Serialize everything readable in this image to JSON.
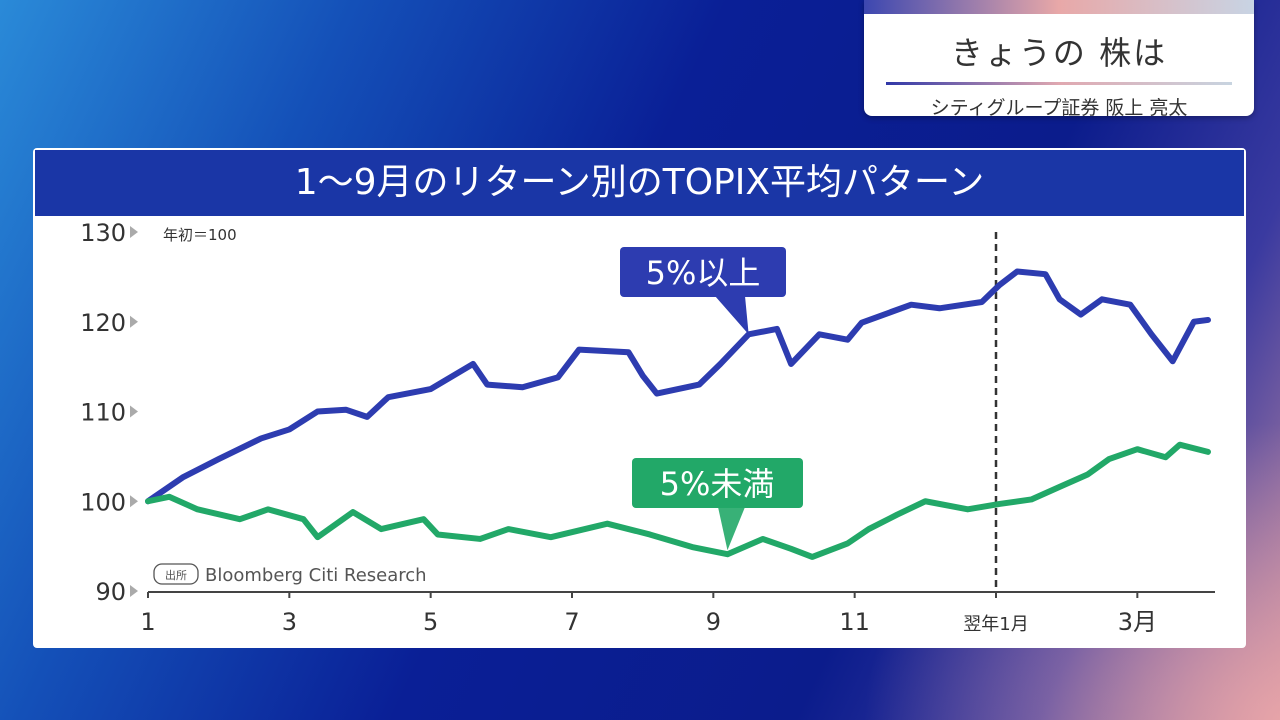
{
  "caption": {
    "title": "きょうの 株は",
    "subtitle": "シティグループ証券 阪上 亮太"
  },
  "chart_data": {
    "type": "line",
    "title": "1〜9月のリターン別のTOPIX平均パターン",
    "unit_note": "年初＝100",
    "source_tag": "出所",
    "source": "Bloomberg Citi Research",
    "ylim": [
      90,
      130
    ],
    "yticks": [
      90,
      100,
      110,
      120,
      130
    ],
    "xlim": [
      1,
      16
    ],
    "xticks": [
      {
        "x": 1,
        "label": "1"
      },
      {
        "x": 3,
        "label": "3"
      },
      {
        "x": 5,
        "label": "5"
      },
      {
        "x": 7,
        "label": "7"
      },
      {
        "x": 9,
        "label": "9"
      },
      {
        "x": 11,
        "label": "11"
      },
      {
        "x": 13,
        "label": "翌年1月"
      },
      {
        "x": 15,
        "label": "3月"
      }
    ],
    "marker_x": 13,
    "series": [
      {
        "name": "5%以上",
        "color": "#2d3cb0",
        "label_at": [
          9.5,
          118.6
        ],
        "points": [
          [
            1,
            100
          ],
          [
            1.5,
            102.7
          ],
          [
            2,
            104.7
          ],
          [
            2.6,
            107
          ],
          [
            3,
            108
          ],
          [
            3.4,
            110
          ],
          [
            3.8,
            110.2
          ],
          [
            4.1,
            109.4
          ],
          [
            4.4,
            111.6
          ],
          [
            5,
            112.5
          ],
          [
            5.6,
            115.3
          ],
          [
            5.8,
            113
          ],
          [
            6.3,
            112.7
          ],
          [
            6.8,
            113.8
          ],
          [
            7.1,
            116.9
          ],
          [
            7.8,
            116.6
          ],
          [
            8,
            114
          ],
          [
            8.2,
            112
          ],
          [
            8.8,
            113
          ],
          [
            9.1,
            115.3
          ],
          [
            9.5,
            118.6
          ],
          [
            9.9,
            119.2
          ],
          [
            10.1,
            115.3
          ],
          [
            10.5,
            118.6
          ],
          [
            10.9,
            118
          ],
          [
            11.1,
            119.9
          ],
          [
            11.8,
            121.9
          ],
          [
            12.2,
            121.5
          ],
          [
            12.8,
            122.2
          ],
          [
            13.05,
            124.1
          ],
          [
            13.3,
            125.6
          ],
          [
            13.7,
            125.3
          ],
          [
            13.9,
            122.5
          ],
          [
            14.2,
            120.8
          ],
          [
            14.5,
            122.5
          ],
          [
            14.9,
            121.9
          ],
          [
            15.2,
            118.6
          ],
          [
            15.5,
            115.6
          ],
          [
            15.8,
            120
          ],
          [
            16,
            120.2
          ]
        ]
      },
      {
        "name": "5%未満",
        "color": "#22a868",
        "label_at": [
          9.2,
          94.1
        ],
        "points": [
          [
            1,
            100
          ],
          [
            1.3,
            100.5
          ],
          [
            1.7,
            99.1
          ],
          [
            2.3,
            98
          ],
          [
            2.7,
            99.1
          ],
          [
            3.2,
            98
          ],
          [
            3.4,
            96
          ],
          [
            3.9,
            98.8
          ],
          [
            4.3,
            96.9
          ],
          [
            4.9,
            98
          ],
          [
            5.1,
            96.3
          ],
          [
            5.7,
            95.8
          ],
          [
            6.1,
            96.9
          ],
          [
            6.7,
            96
          ],
          [
            7.5,
            97.5
          ],
          [
            8.1,
            96.3
          ],
          [
            8.7,
            94.9
          ],
          [
            9.2,
            94.1
          ],
          [
            9.7,
            95.8
          ],
          [
            10.1,
            94.7
          ],
          [
            10.4,
            93.8
          ],
          [
            10.9,
            95.3
          ],
          [
            11.2,
            96.9
          ],
          [
            11.6,
            98.5
          ],
          [
            12,
            100
          ],
          [
            12.6,
            99.1
          ],
          [
            13.05,
            99.7
          ],
          [
            13.5,
            100.2
          ],
          [
            13.9,
            101.6
          ],
          [
            14.3,
            103
          ],
          [
            14.6,
            104.7
          ],
          [
            15,
            105.8
          ],
          [
            15.4,
            104.9
          ],
          [
            15.6,
            106.3
          ],
          [
            16,
            105.5
          ]
        ]
      }
    ]
  }
}
